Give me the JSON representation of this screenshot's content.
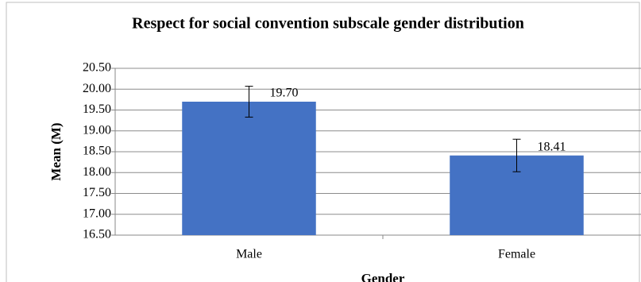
{
  "chart_data": {
    "type": "bar",
    "title": "Respect for social convention subscale gender distribution",
    "categories": [
      "Male",
      "Female"
    ],
    "values": [
      19.7,
      18.41
    ],
    "value_labels": [
      "19.70",
      "18.41"
    ],
    "errors": [
      0.37,
      0.39
    ],
    "color": "#4472c4",
    "x_label": "Gender",
    "y_label": "Mean (M)",
    "ylim": [
      16.5,
      20.5
    ],
    "yticks": [
      {
        "value": 16.5,
        "label": "16.50"
      },
      {
        "value": 17,
        "label": "17.00"
      },
      {
        "value": 17.5,
        "label": "17.50"
      },
      {
        "value": 18,
        "label": "18.00"
      },
      {
        "value": 18.5,
        "label": "18.50"
      },
      {
        "value": 19,
        "label": "19.00"
      },
      {
        "value": 19.5,
        "label": "19.50"
      },
      {
        "value": 20,
        "label": "20.00"
      },
      {
        "value": 20.5,
        "label": "20.50"
      }
    ],
    "grid": true
  }
}
